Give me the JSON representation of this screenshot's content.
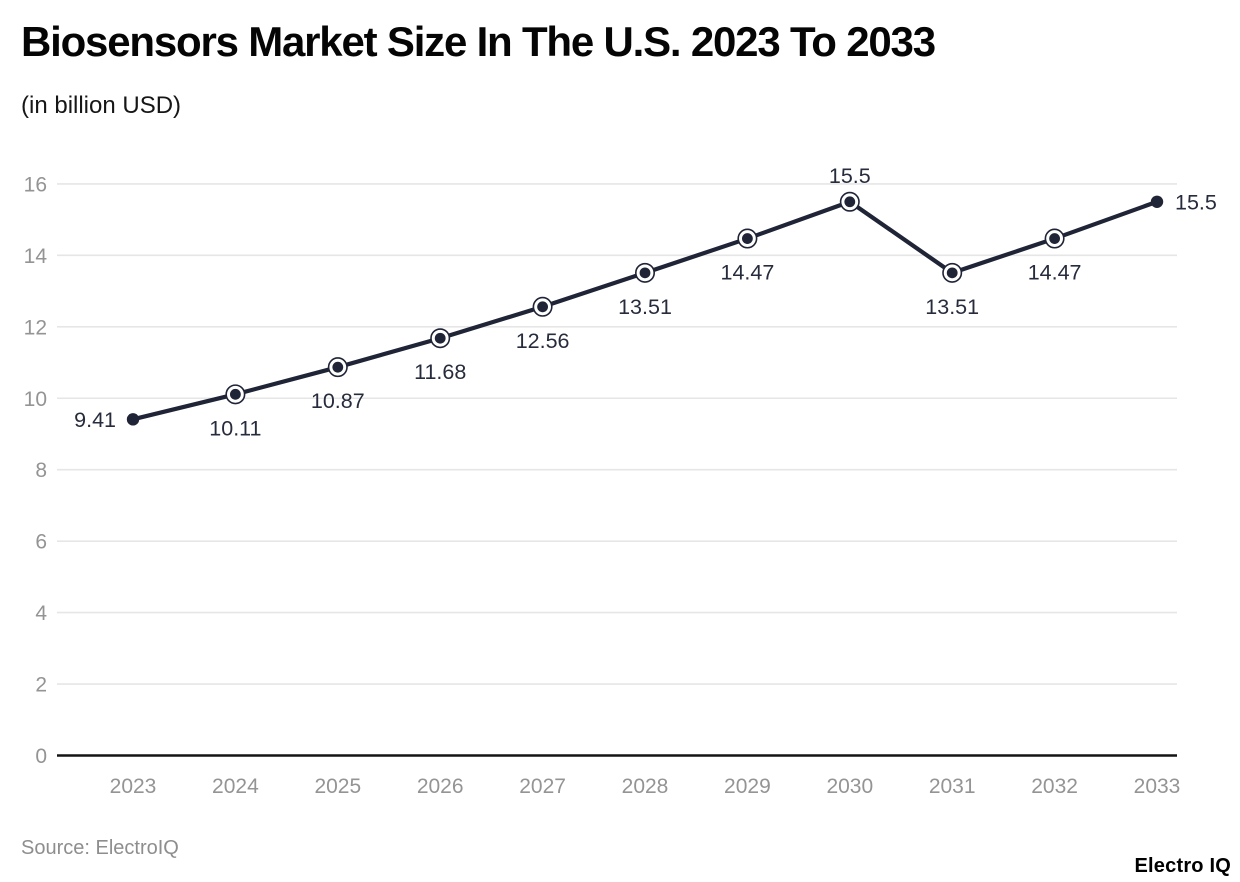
{
  "header": {
    "title": "Biosensors Market Size In The U.S. 2023 To 2033",
    "subtitle": "(in billion USD)"
  },
  "chart_data": {
    "type": "line",
    "title": "Biosensors Market Size In The U.S. 2023 To 2033",
    "subtitle": "(in billion USD)",
    "categories": [
      "2023",
      "2024",
      "2025",
      "2026",
      "2027",
      "2028",
      "2029",
      "2030",
      "2031",
      "2032",
      "2033"
    ],
    "values": [
      9.41,
      10.11,
      10.87,
      11.68,
      12.56,
      13.51,
      14.47,
      15.5,
      13.51,
      14.47,
      15.5
    ],
    "point_labels": [
      "9.41",
      "10.11",
      "10.87",
      "11.68",
      "12.56",
      "13.51",
      "14.47",
      "15.5",
      "13.51",
      "14.47",
      "15.5"
    ],
    "label_placement": [
      "left",
      "below",
      "below",
      "below",
      "below",
      "below",
      "below",
      "above",
      "below",
      "below",
      "right"
    ],
    "marker_style": [
      "dot",
      "ring",
      "ring",
      "ring",
      "ring",
      "ring",
      "ring",
      "ring",
      "ring",
      "ring",
      "dot"
    ],
    "xlabel": "",
    "ylabel": "",
    "ylim": [
      0,
      16
    ],
    "y_ticks": [
      0,
      2,
      4,
      6,
      8,
      10,
      12,
      14,
      16
    ],
    "grid": "horizontal",
    "legend": "none",
    "colors": {
      "line": "#1f2436",
      "marker": "#1f2436",
      "marker_ring_fill": "#ffffff",
      "grid": "#e6e6e6",
      "axis": "#141414",
      "tick_label": "#949494",
      "point_label": "#272c3c"
    }
  },
  "footer": {
    "source": "Source: ElectroIQ",
    "brand": "Electro IQ"
  }
}
